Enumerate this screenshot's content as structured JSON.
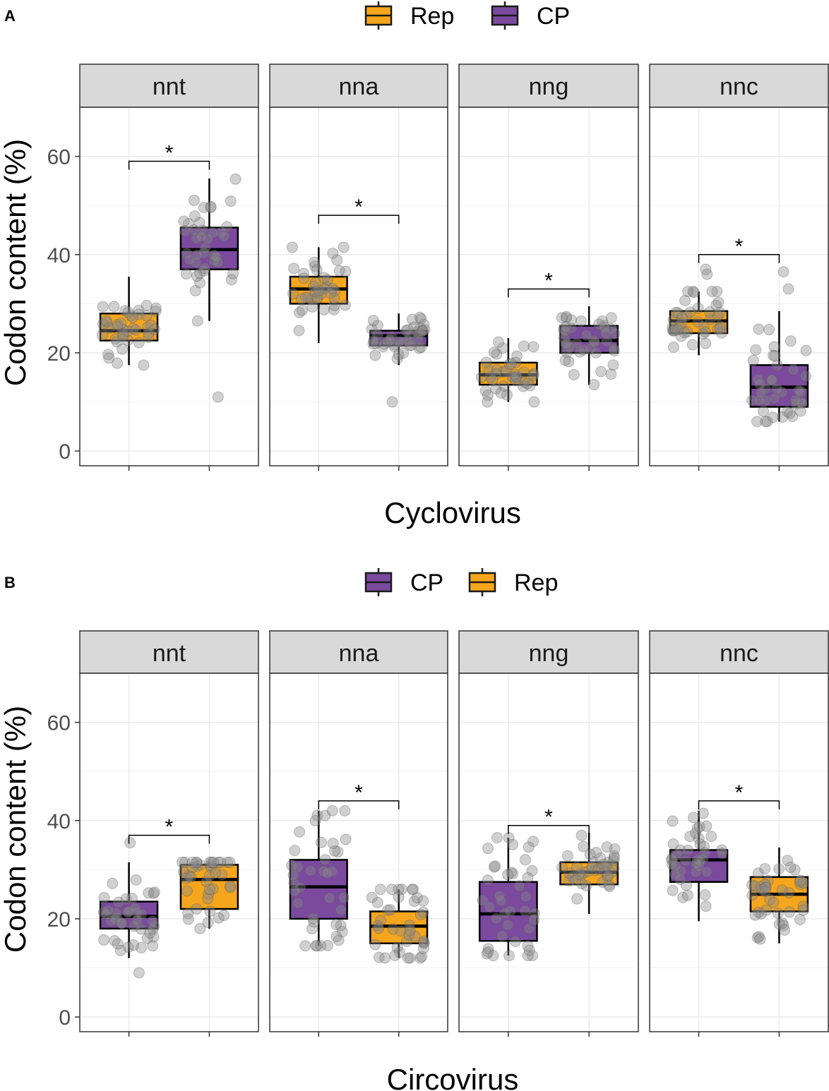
{
  "colors": {
    "Rep": "#F5A61C",
    "CP": "#7B4A9E",
    "point": "#8a8a8a",
    "strip": "#d9d9d9",
    "grid": "#ebebeb"
  },
  "chart_data": [
    {
      "type": "boxplot",
      "panel_label": "A",
      "legend": [
        "Rep",
        "CP"
      ],
      "xlabel": "Cyclovirus",
      "ylabel": "Codon content (%)",
      "ylim": [
        -3,
        70
      ],
      "yticks": [
        0,
        20,
        40,
        60
      ],
      "significance": "*",
      "facets": [
        {
          "name": "nnt",
          "sig_y": 59,
          "boxes": [
            {
              "group": "Rep",
              "min": 17.5,
              "q1": 22.5,
              "median": 24.5,
              "q3": 28,
              "max": 35.5
            },
            {
              "group": "CP",
              "min": 26.5,
              "q1": 37,
              "median": 41,
              "q3": 45.5,
              "max": 55.5,
              "outliers": [
                11
              ]
            }
          ]
        },
        {
          "name": "nna",
          "sig_y": 48,
          "boxes": [
            {
              "group": "Rep",
              "min": 22,
              "q1": 30,
              "median": 33,
              "q3": 35.5,
              "max": 41.5
            },
            {
              "group": "CP",
              "min": 17.5,
              "q1": 21.5,
              "median": 23.5,
              "q3": 24.5,
              "max": 28,
              "outliers": [
                10
              ]
            }
          ]
        },
        {
          "name": "nng",
          "sig_y": 33,
          "boxes": [
            {
              "group": "Rep",
              "min": 10,
              "q1": 13.5,
              "median": 15.5,
              "q3": 18,
              "max": 23
            },
            {
              "group": "CP",
              "min": 13.5,
              "q1": 20,
              "median": 22.5,
              "q3": 25.5,
              "max": 29.5
            }
          ]
        },
        {
          "name": "nnc",
          "sig_y": 40,
          "boxes": [
            {
              "group": "Rep",
              "min": 19.5,
              "q1": 24,
              "median": 26.5,
              "q3": 28.5,
              "max": 32.5,
              "outliers": [
                36,
                37
              ]
            },
            {
              "group": "CP",
              "min": 6,
              "q1": 9,
              "median": 13,
              "q3": 17.5,
              "max": 28.5,
              "outliers": [
                33,
                36.5
              ]
            }
          ]
        }
      ]
    },
    {
      "type": "boxplot",
      "panel_label": "B",
      "legend": [
        "CP",
        "Rep"
      ],
      "xlabel": "Circovirus",
      "ylabel": "Codon content (%)",
      "ylim": [
        -3,
        70
      ],
      "yticks": [
        0,
        20,
        40,
        60
      ],
      "significance": "*",
      "facets": [
        {
          "name": "nnt",
          "sig_y": 37,
          "boxes": [
            {
              "group": "CP",
              "min": 12,
              "q1": 18,
              "median": 20.5,
              "q3": 23.5,
              "max": 31.5,
              "outliers": [
                35.5,
                9
              ]
            },
            {
              "group": "Rep",
              "min": 18,
              "q1": 22,
              "median": 28,
              "q3": 31,
              "max": 31.5
            }
          ]
        },
        {
          "name": "nna",
          "sig_y": 44,
          "boxes": [
            {
              "group": "CP",
              "min": 14.5,
              "q1": 20,
              "median": 26.5,
              "q3": 32,
              "max": 42
            },
            {
              "group": "Rep",
              "min": 12,
              "q1": 15,
              "median": 18.5,
              "q3": 21.5,
              "max": 26
            }
          ]
        },
        {
          "name": "nng",
          "sig_y": 39,
          "boxes": [
            {
              "group": "CP",
              "min": 12.5,
              "q1": 15.5,
              "median": 21,
              "q3": 27.5,
              "max": 36.5
            },
            {
              "group": "Rep",
              "min": 21,
              "q1": 27,
              "median": 29.5,
              "q3": 31.5,
              "max": 37.5
            }
          ]
        },
        {
          "name": "nnc",
          "sig_y": 44,
          "boxes": [
            {
              "group": "CP",
              "min": 19.5,
              "q1": 27.5,
              "median": 32,
              "q3": 34,
              "max": 42
            },
            {
              "group": "Rep",
              "min": 15,
              "q1": 21.5,
              "median": 25,
              "q3": 28.5,
              "max": 34.5
            }
          ]
        }
      ]
    }
  ]
}
